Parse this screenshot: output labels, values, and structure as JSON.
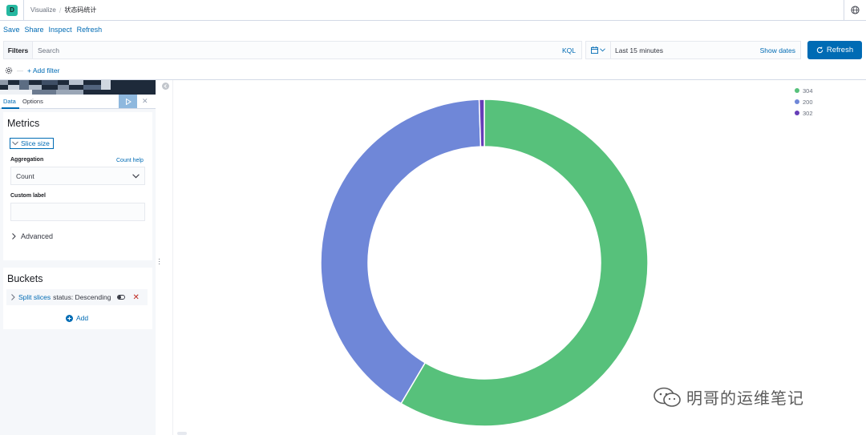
{
  "header": {
    "logo_letter": "D",
    "app": "Visualize",
    "title": "状态码统计"
  },
  "menu": {
    "save": "Save",
    "share": "Share",
    "inspect": "Inspect",
    "refresh": "Refresh"
  },
  "query": {
    "filters_label": "Filters",
    "search_placeholder": "Search",
    "language": "KQL",
    "time_range": "Last 15 minutes",
    "show_dates": "Show dates",
    "refresh_button": "Refresh",
    "add_filter": "+ Add filter"
  },
  "sidebar": {
    "tabs": [
      "Data",
      "Options"
    ],
    "active_tab": "Data",
    "metrics": {
      "title": "Metrics",
      "metric_label": "Slice size",
      "aggregation_label": "Aggregation",
      "count_help": "Count help",
      "aggregation_value": "Count",
      "custom_label": "Custom label",
      "custom_label_value": "",
      "advanced": "Advanced"
    },
    "buckets": {
      "title": "Buckets",
      "split_link": "Split slices",
      "split_desc": "status: Descending",
      "add": "Add"
    }
  },
  "chart_data": {
    "type": "pie",
    "donut": true,
    "legend_position": "top-right",
    "categories": [
      "304",
      "200",
      "302"
    ],
    "values": [
      58.5,
      41.0,
      0.5
    ],
    "colors": [
      "#57c17b",
      "#6f87d8",
      "#663db8"
    ]
  },
  "watermark": "明哥的运维笔记",
  "colors": {
    "accent": "#006bb4",
    "logo": "#25b8a0"
  }
}
